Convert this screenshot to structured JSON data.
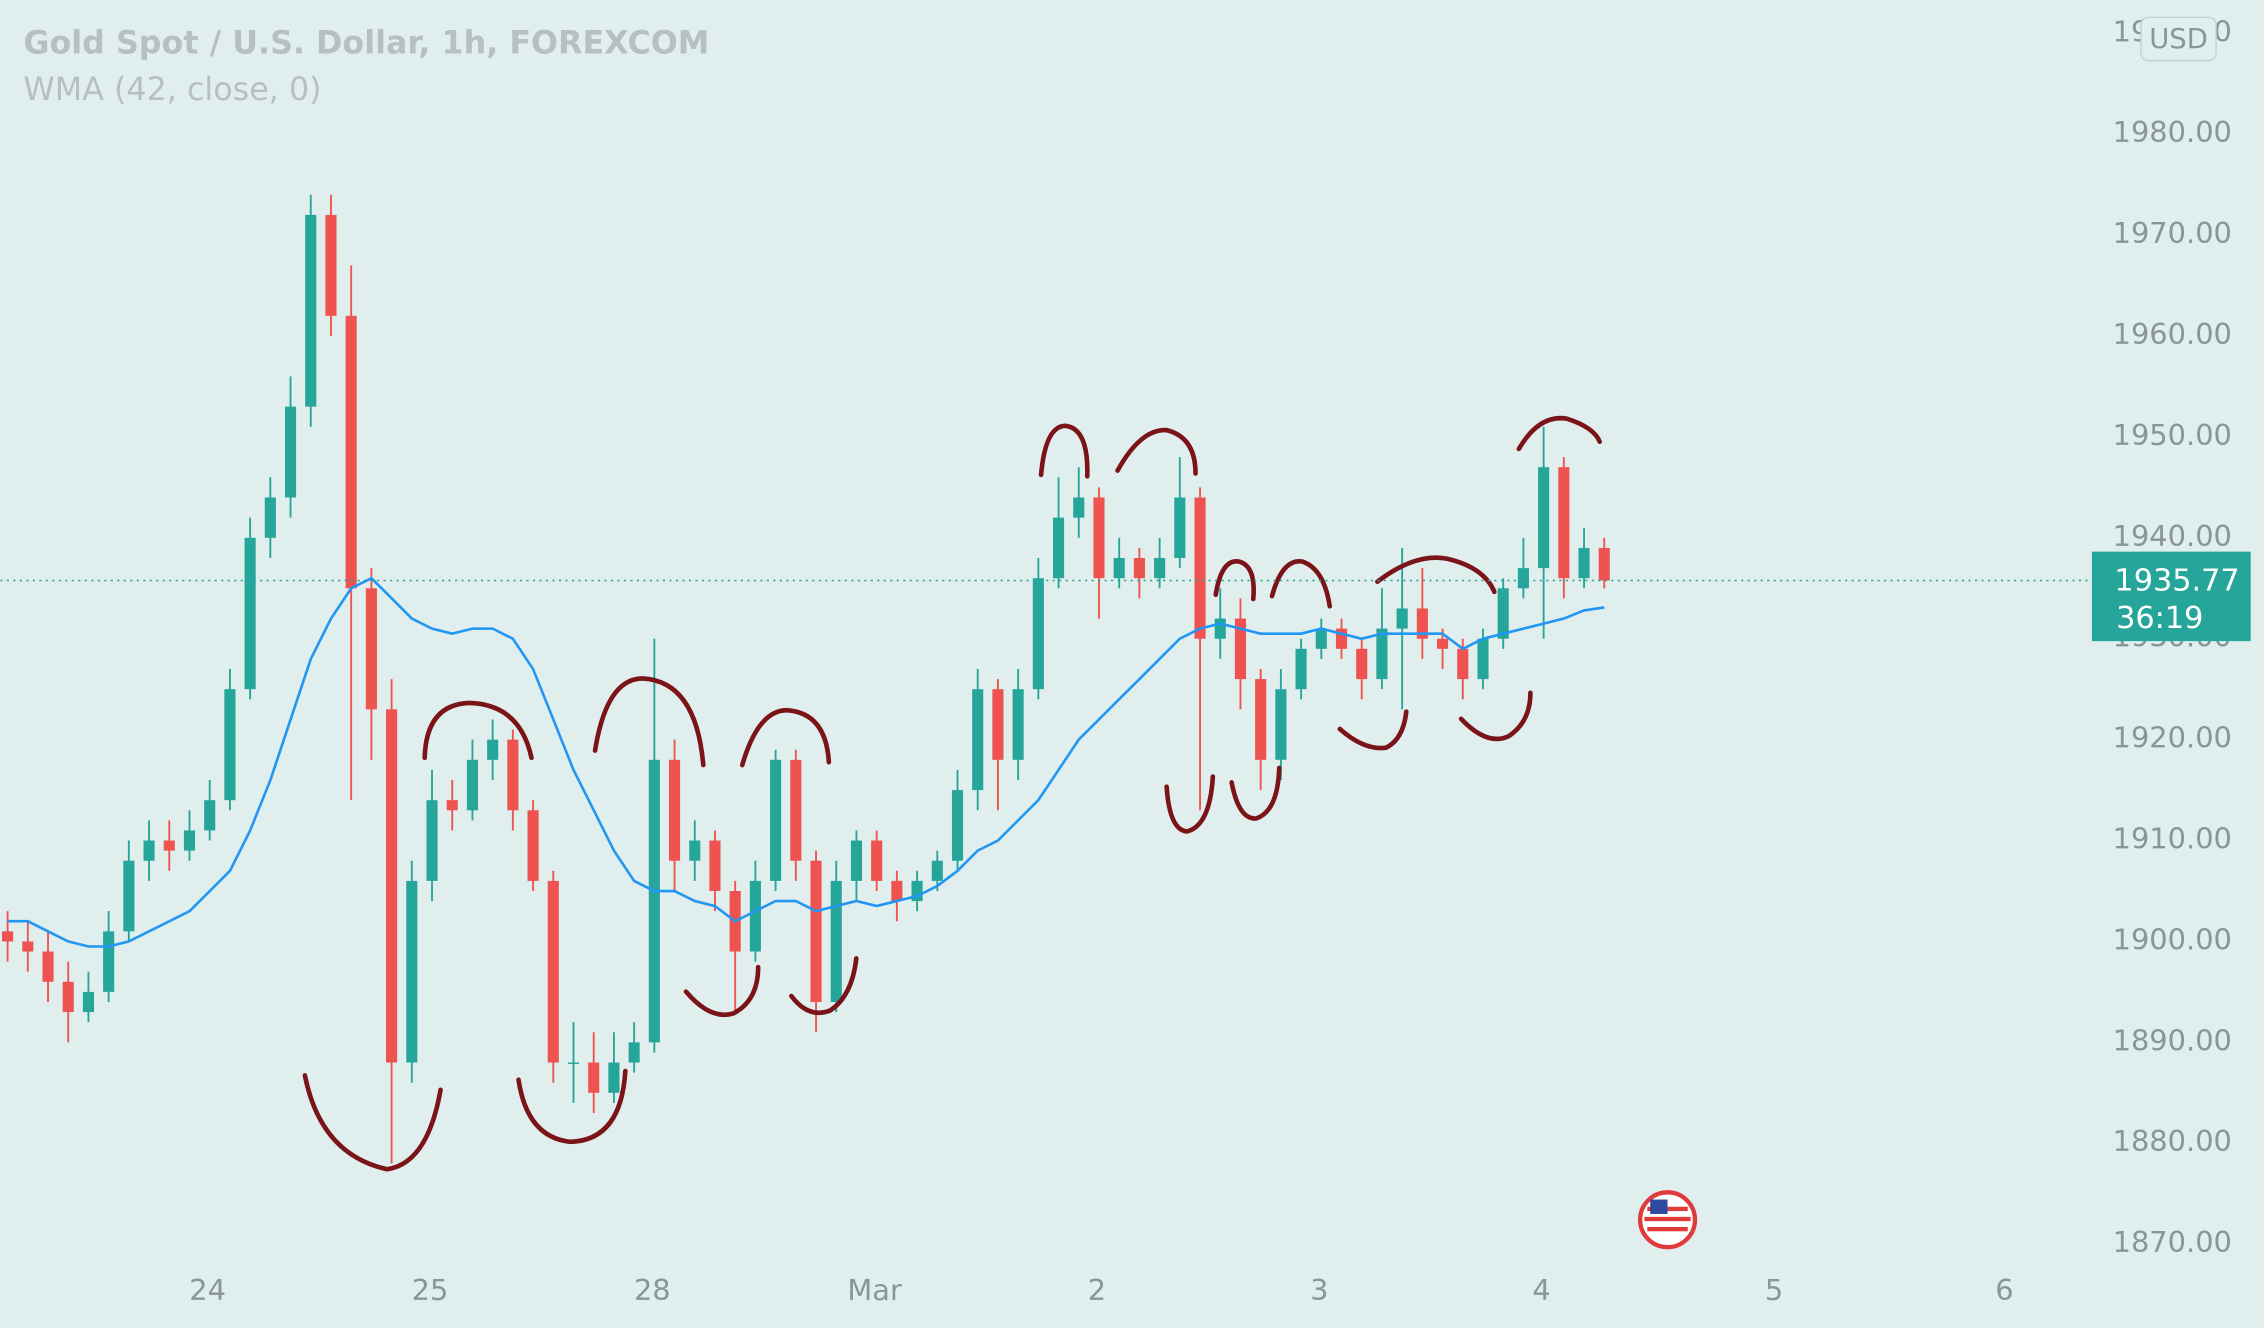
{
  "chart_data": {
    "type": "candlestick",
    "title": "Gold Spot / U.S. Dollar, 1h, FOREXCOM",
    "subtitle": "WMA (42, close, 0)",
    "currency": "USD",
    "countdown": "36:19",
    "up_color": "#26a69a",
    "down_color": "#ef5350",
    "x": [
      0,
      1,
      2,
      3,
      4,
      5,
      6,
      7,
      8,
      9,
      10,
      11,
      12,
      13,
      14,
      15,
      16,
      17,
      18,
      19,
      20,
      21,
      22,
      23,
      24,
      25,
      26,
      27,
      28,
      29,
      30,
      31,
      32,
      33,
      34,
      35,
      36,
      37,
      38,
      39,
      40,
      41,
      42,
      43,
      44,
      45,
      46,
      47,
      48,
      49,
      50,
      51,
      52,
      53,
      54,
      55,
      56,
      57,
      58,
      59,
      60,
      61,
      62,
      63,
      64,
      65,
      66,
      67,
      68,
      69,
      70,
      71,
      72,
      73,
      74,
      75,
      76,
      77,
      78,
      79
    ],
    "open": [
      1901,
      1900,
      1899,
      1896,
      1893,
      1895,
      1901,
      1908,
      1910,
      1909,
      1911,
      1914,
      1925,
      1940,
      1944,
      1953,
      1972,
      1962,
      1935,
      1923,
      1888,
      1906,
      1914,
      1913,
      1918,
      1920,
      1913,
      1906,
      1888,
      1888,
      1885,
      1888,
      1890,
      1918,
      1908,
      1910,
      1905,
      1899,
      1906,
      1918,
      1908,
      1894,
      1906,
      1910,
      1906,
      1904,
      1906,
      1908,
      1915,
      1925,
      1918,
      1925,
      1936,
      1942,
      1944,
      1936,
      1938,
      1936,
      1938,
      1944,
      1930,
      1932,
      1926,
      1918,
      1925,
      1929,
      1931,
      1929,
      1926,
      1931,
      1933,
      1930,
      1929,
      1926,
      1930,
      1935,
      1937,
      1947,
      1936,
      1939
    ],
    "high": [
      1903,
      1902,
      1901,
      1898,
      1897,
      1903,
      1910,
      1912,
      1912,
      1913,
      1916,
      1927,
      1942,
      1946,
      1956,
      1974,
      1974,
      1967,
      1937,
      1926,
      1908,
      1917,
      1916,
      1920,
      1922,
      1921,
      1914,
      1907,
      1892,
      1891,
      1891,
      1892,
      1930,
      1920,
      1912,
      1911,
      1906,
      1908,
      1919,
      1919,
      1909,
      1908,
      1911,
      1911,
      1907,
      1907,
      1909,
      1917,
      1927,
      1926,
      1927,
      1938,
      1946,
      1947,
      1945,
      1940,
      1939,
      1940,
      1948,
      1945,
      1935,
      1934,
      1927,
      1927,
      1930,
      1932,
      1932,
      1930,
      1935,
      1939,
      1937,
      1931,
      1930,
      1931,
      1936,
      1940,
      1951,
      1948,
      1941,
      1940
    ],
    "low": [
      1898,
      1897,
      1894,
      1890,
      1892,
      1894,
      1900,
      1906,
      1907,
      1908,
      1910,
      1913,
      1924,
      1938,
      1942,
      1951,
      1960,
      1914,
      1918,
      1878,
      1886,
      1904,
      1911,
      1912,
      1916,
      1911,
      1905,
      1886,
      1884,
      1883,
      1884,
      1887,
      1889,
      1905,
      1906,
      1903,
      1893,
      1898,
      1905,
      1906,
      1891,
      1893,
      1904,
      1905,
      1902,
      1903,
      1905,
      1907,
      1913,
      1913,
      1916,
      1924,
      1935,
      1940,
      1932,
      1935,
      1934,
      1935,
      1937,
      1913,
      1928,
      1923,
      1915,
      1916,
      1924,
      1928,
      1928,
      1924,
      1925,
      1923,
      1928,
      1927,
      1924,
      1925,
      1929,
      1934,
      1930,
      1934,
      1935,
      1935
    ],
    "close": [
      1900,
      1899,
      1896,
      1893,
      1895,
      1901,
      1908,
      1910,
      1909,
      1911,
      1914,
      1925,
      1940,
      1944,
      1953,
      1972,
      1962,
      1935,
      1923,
      1888,
      1906,
      1914,
      1913,
      1918,
      1920,
      1913,
      1906,
      1888,
      1888,
      1885,
      1888,
      1890,
      1918,
      1908,
      1910,
      1905,
      1899,
      1906,
      1918,
      1908,
      1894,
      1906,
      1910,
      1906,
      1904,
      1906,
      1908,
      1915,
      1925,
      1918,
      1925,
      1936,
      1942,
      1944,
      1936,
      1938,
      1936,
      1938,
      1944,
      1930,
      1932,
      1926,
      1918,
      1925,
      1929,
      1931,
      1929,
      1926,
      1931,
      1933,
      1930,
      1929,
      1926,
      1930,
      1935,
      1937,
      1947,
      1936,
      1939,
      1935.77
    ],
    "wma": {
      "color": "#2196f3",
      "values": [
        1902,
        1902,
        1901,
        1900,
        1899.5,
        1899.5,
        1900,
        1901,
        1902,
        1903,
        1905,
        1907,
        1911,
        1916,
        1922,
        1928,
        1932,
        1935,
        1936,
        1934,
        1932,
        1931,
        1930.5,
        1931,
        1931,
        1930,
        1927,
        1922,
        1917,
        1913,
        1909,
        1906,
        1905,
        1905,
        1904,
        1903.5,
        1902,
        1903,
        1904,
        1904,
        1903,
        1903.5,
        1904,
        1903.5,
        1904,
        1904.5,
        1905.5,
        1907,
        1909,
        1910,
        1912,
        1914,
        1917,
        1920,
        1922,
        1924,
        1926,
        1928,
        1930,
        1931,
        1931.5,
        1931,
        1930.5,
        1930.5,
        1930.5,
        1931,
        1930.5,
        1930,
        1930.5,
        1930.5,
        1930.5,
        1930.5,
        1929,
        1930,
        1930.5,
        1931,
        1931.5,
        1932,
        1932.8,
        1933.1
      ]
    },
    "xlim": [
      -0.36,
      103.2
    ],
    "xticks": [
      {
        "value": 9.9,
        "label": "24"
      },
      {
        "value": 20.9,
        "label": "25"
      },
      {
        "value": 31.9,
        "label": "28"
      },
      {
        "value": 42.9,
        "label": "Mar"
      },
      {
        "value": 53.9,
        "label": "2"
      },
      {
        "value": 64.9,
        "label": "3"
      },
      {
        "value": 75.9,
        "label": "4"
      },
      {
        "value": 87.4,
        "label": "5"
      },
      {
        "value": 98.8,
        "label": "6"
      }
    ],
    "ylim": [
      1867.7,
      1993.3
    ],
    "yticks": [
      {
        "value": 1870,
        "label": "1870.00"
      },
      {
        "value": 1880,
        "label": "1880.00"
      },
      {
        "value": 1890,
        "label": "1890.00"
      },
      {
        "value": 1900,
        "label": "1900.00"
      },
      {
        "value": 1910,
        "label": "1910.00"
      },
      {
        "value": 1920,
        "label": "1920.00"
      },
      {
        "value": 1930,
        "label": "1930.00"
      },
      {
        "value": 1940,
        "label": "1940.00"
      },
      {
        "value": 1950,
        "label": "1950.00"
      },
      {
        "value": 1960,
        "label": "1960.00"
      },
      {
        "value": 1970,
        "label": "1970.00"
      },
      {
        "value": 1980,
        "label": "1980.00"
      },
      {
        "value": 1990,
        "label": "1990.00"
      }
    ],
    "grid": false
  }
}
